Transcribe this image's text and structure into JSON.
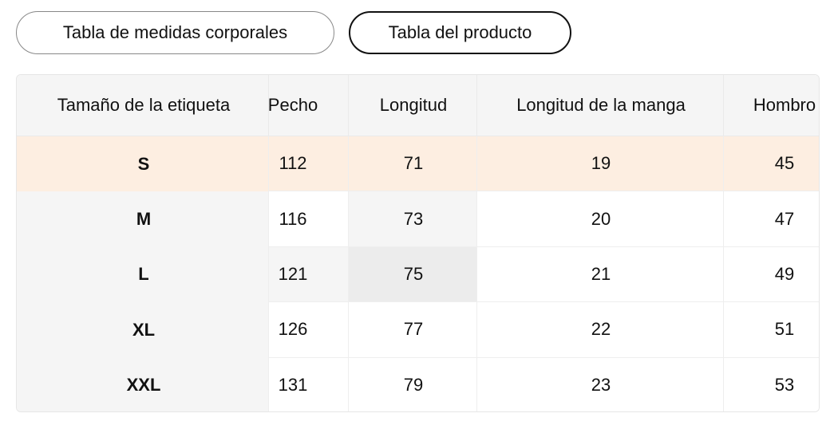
{
  "tabs": [
    "Tabla de medidas corporales",
    "Tabla del producto"
  ],
  "table": {
    "headers": [
      "Tamaño de la etiqueta",
      "Pecho",
      "Longitud",
      "Longitud de la manga",
      "Hombro"
    ],
    "rows": [
      [
        "S",
        "112",
        "71",
        "19",
        "45"
      ],
      [
        "M",
        "116",
        "73",
        "20",
        "47"
      ],
      [
        "L",
        "121",
        "75",
        "21",
        "49"
      ],
      [
        "XL",
        "126",
        "77",
        "22",
        "51"
      ],
      [
        "XXL",
        "131",
        "79",
        "23",
        "53"
      ]
    ]
  }
}
